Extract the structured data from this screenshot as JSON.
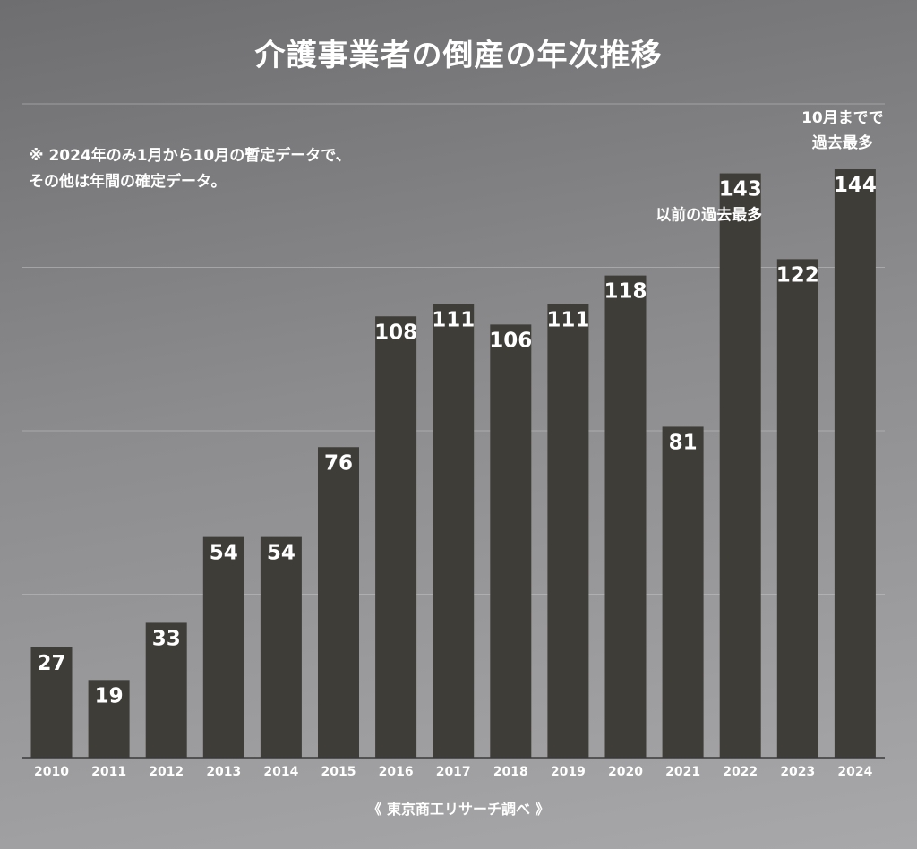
{
  "chart_data": {
    "type": "bar",
    "title": "介護事業者の倒産の年次推移",
    "categories": [
      "2010",
      "2011",
      "2012",
      "2013",
      "2014",
      "2015",
      "2016",
      "2017",
      "2018",
      "2019",
      "2020",
      "2021",
      "2022",
      "2023",
      "2024"
    ],
    "values": [
      27,
      19,
      33,
      54,
      54,
      76,
      108,
      111,
      106,
      111,
      118,
      81,
      143,
      122,
      144
    ],
    "ylim": [
      0,
      160
    ],
    "grid": true,
    "xlabel": "",
    "ylabel": "",
    "note_lines": [
      "※ 2024年のみ1月から10月の暫定データで、",
      "その他は年間の確定データ。"
    ],
    "annotations": [
      {
        "category": "2022",
        "lines": [
          "以前の過去最多"
        ]
      },
      {
        "category": "2024",
        "lines": [
          "10月までで",
          "過去最多"
        ]
      }
    ],
    "source": "《 東京商工リサーチ調べ 》",
    "bar_color": "#3f3d38"
  }
}
